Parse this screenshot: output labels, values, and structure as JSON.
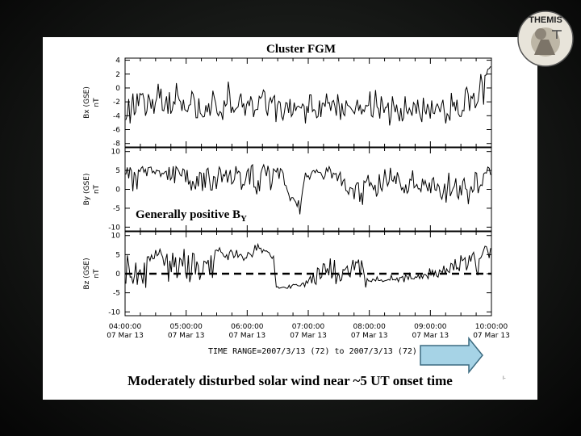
{
  "title": "Cluster FGM",
  "annotation": {
    "main": "Generally positive B",
    "sub": "Y"
  },
  "caption": "Moderately disturbed solar wind near ~5 UT onset time",
  "time_range_label": "TIME RANGE=2007/3/13 (72) to 2007/3/13 (72)",
  "logo_text": "THEMIS",
  "corner_mark": "I-",
  "colors": {
    "background": "#000000",
    "panel": "#ffffff",
    "arrow": "#a6d3e6",
    "trace": "#000000"
  },
  "chart_data": {
    "type": "line",
    "x_ticks": [
      {
        "time": "04:00:00",
        "date": "07 Mar 13"
      },
      {
        "time": "05:00:00",
        "date": "07 Mar 13"
      },
      {
        "time": "06:00:00",
        "date": "07 Mar 13"
      },
      {
        "time": "07:00:00",
        "date": "07 Mar 13"
      },
      {
        "time": "08:00:00",
        "date": "07 Mar 13"
      },
      {
        "time": "09:00:00",
        "date": "07 Mar 13"
      },
      {
        "time": "10:00:00",
        "date": "07 Mar 13"
      }
    ],
    "xlim_hours": [
      4,
      10
    ],
    "panels": [
      {
        "ylabel": "Bx (GSE)",
        "yunit": "nT",
        "ylim": [
          -8.5,
          4.3
        ],
        "ticks": [
          4,
          2,
          0,
          -2,
          -4,
          -6,
          -8
        ],
        "values": [
          -4.6,
          -3.9,
          -1.6,
          -5.1,
          -2.7,
          -0.8,
          -3.9,
          -3.4,
          -0.8,
          -2.6,
          -0.8,
          -1.0,
          -0.8,
          -1.7,
          -4.0,
          -3.3,
          -0.9,
          -1.6,
          -3.0,
          -1.6,
          -3.7,
          -2.2,
          -1.5,
          0.6,
          -1.5,
          -0.1,
          -3.2,
          -3.3,
          -2.3,
          -1.2,
          -3.7,
          -0.6,
          -3.7,
          -3.2,
          -2.0,
          -2.3,
          0.7,
          -1.0,
          -1.7,
          -2.0,
          -3.3,
          -1.7,
          -3.1,
          -3.3,
          -3.4,
          -2.5,
          -2.4,
          -0.5,
          -0.9,
          -1.9,
          -4.3,
          -4.3,
          -1.5,
          -3.6,
          -3.9,
          -4.2,
          -4.1,
          -2.5,
          -3.5,
          -2.2,
          -4.0,
          -2.8,
          -0.4,
          -1.3,
          -2.2,
          -3.6,
          -4.0,
          -3.4,
          -3.6,
          -4.6,
          -1.8,
          -2.6,
          -2.3,
          0.9,
          -0.7,
          -3.6,
          -2.7,
          -3.5,
          -3.1,
          -2.9,
          -2.7,
          -1.4,
          -0.8,
          -2.8,
          -2.2,
          -4.0,
          -2.4,
          -1.9,
          -2.6,
          -1.2,
          -1.9,
          -4.2,
          -3.2,
          -3.1,
          -3.1,
          -1.2,
          -1.5,
          -1.2,
          -0.3,
          -0.6,
          -3.2,
          -4.0,
          -2.1,
          -1.4,
          -2.1,
          -1.4,
          -1.1,
          -4.9,
          -2.5,
          -1.9,
          -2.1,
          -4.1,
          -4.6,
          -3.5,
          -2.1,
          -2.2,
          -3.6,
          -1.6,
          -4.1,
          -3.7,
          -2.1,
          -3.3,
          -2.7,
          -2.6,
          -2.8,
          -2.9,
          -2.3,
          -2.6,
          -5.1,
          -2.6,
          -3.6,
          -1.0,
          -1.0,
          -3.4,
          -3.1,
          -3.3,
          -4.3,
          -4.1,
          -1.8,
          -4.2,
          -2.2,
          -2.2,
          -2.7,
          -0.8,
          -2.2,
          -2.1,
          -3.3,
          -2.0,
          -1.8,
          -2.6,
          -4.0,
          -0.9,
          -2.4,
          -4.6,
          -2.2,
          -3.7,
          -4.0,
          -1.8,
          -2.5,
          -2.6,
          -2.8,
          -3.1,
          -3.4,
          -3.7,
          -2.6,
          -1.7,
          -3.3,
          -2.4,
          -3.8,
          -3.1,
          -3.4,
          -2.5,
          -2.6,
          -2.5,
          -0.5,
          -4.0,
          -4.2,
          -2.5,
          -0.3,
          -2.7,
          -3.0,
          -4.4,
          -1.2,
          -2.2,
          -3.6,
          -2.8,
          -2.8,
          -2.1,
          -5.4,
          -4.1,
          -1.2,
          -2.5,
          -3.5,
          -2.4,
          -3.8,
          -4.8,
          -2.9,
          -4.8,
          -4.3,
          -1.2,
          -3.3,
          -3.7,
          -2.9,
          -3.4,
          -4.0,
          -2.1,
          -2.4,
          -3.7,
          -1.7,
          -3.3,
          -4.2,
          -4.9,
          -1.4,
          -3.2,
          -3.8,
          -2.3,
          -3.0,
          -4.4,
          -1.8,
          -3.6,
          -3.7,
          -2.7,
          -2.3,
          -2.8,
          -3.5,
          -2.4,
          -1.7,
          -3.4,
          -5.1,
          -3.7,
          -4.0,
          -4.7,
          -0.7,
          -2.7,
          -2.0,
          -3.3,
          -1.7,
          -3.7,
          -4.1,
          -4.1,
          -3.2,
          -3.3,
          -0.3,
          0.1,
          -0.9,
          -3.3,
          -1.2,
          -1.5,
          -0.7,
          -2.9,
          -2.4,
          -1.9,
          -0.3,
          2.0,
          0.7,
          -2.4,
          1.8,
          1.9,
          2.7,
          2.8,
          3.1
        ]
      },
      {
        "ylabel": "By (GSE)",
        "yunit": "nT",
        "ylim": [
          -11,
          11
        ],
        "ticks": [
          10,
          5,
          0,
          -5,
          -10
        ],
        "values": [
          3.9,
          5.8,
          2.9,
          5.8,
          4.9,
          -0.5,
          4.6,
          3.5,
          0.0,
          5.1,
          4.7,
          5.6,
          6.0,
          4.5,
          5.3,
          3.5,
          5.7,
          5.8,
          5.9,
          4.4,
          4.8,
          4.1,
          5.1,
          4.9,
          4.9,
          3.4,
          4.3,
          4.1,
          4.6,
          4.8,
          2.5,
          5.9,
          2.5,
          3.1,
          6.1,
          1.6,
          6.0,
          5.5,
          4.8,
          3.8,
          3.5,
          5.4,
          5.1,
          1.9,
          5.1,
          1.3,
          2.2,
          -0.3,
          2.2,
          1.1,
          0.0,
          3.5,
          0.8,
          4.5,
          4.3,
          -0.4,
          4.4,
          0.4,
          5.2,
          5.6,
          2.7,
          -0.2,
          -0.2,
          3.4,
          3.2,
          0.1,
          3.1,
          5.9,
          5.2,
          1.9,
          3.9,
          3.5,
          5.1,
          1.8,
          3.6,
          5.1,
          1.4,
          1.8,
          2.7,
          6.1,
          4.2,
          4.8,
          4.4,
          -0.1,
          1.3,
          1.1,
          2.5,
          4.7,
          5.4,
          1.3,
          6.1,
          6.5,
          0.6,
          0.6,
          -1.3,
          2.4,
          -0.5,
          4.3,
          5.6,
          6.5,
          5.1,
          3.5,
          6.2,
          4.6,
          -0.2,
          1.6,
          5.4,
          5.0,
          4.6,
          5.7,
          2.8,
          5.5,
          5.1,
          4.3,
          1.2,
          1.0,
          -0.3,
          -1.3,
          -3.0,
          -2.2,
          -2.2,
          -2.8,
          -3.4,
          -4.5,
          -2.9,
          -6.6,
          -2.8,
          -0.1,
          2.1,
          4.4,
          3.3,
          3.6,
          2.7,
          4.0,
          4.8,
          5.0,
          4.4,
          5.2,
          4.5,
          4.5,
          4.4,
          3.5,
          2.7,
          3.5,
          5.6,
          4.7,
          6.0,
          5.1,
          2.9,
          4.3,
          4.0,
          4.2,
          2.2,
          3.7,
          4.5,
          0.9,
          2.2,
          2.7,
          -0.3,
          -0.5,
          -1.3,
          0.5,
          0.3,
          0.1,
          -2.6,
          1.0,
          1.7,
          1.7,
          -3.3,
          -0.9,
          -4.1,
          2.2,
          1.8,
          2.4,
          3.8,
          0.8,
          1.8,
          0.9,
          -0.1,
          1.2,
          -1.9,
          -0.9,
          4.0,
          0.5,
          -0.4,
          2.0,
          5.3,
          2.6,
          0.9,
          2.0,
          5.7,
          2.5,
          2.1,
          3.6,
          1.4,
          4.5,
          3.2,
          1.6,
          -0.1,
          0.5,
          -1.0,
          1.3,
          -1.0,
          -0.4,
          2.7,
          2.4,
          5.0,
          0.4,
          0.8,
          1.3,
          0.1,
          0.2,
          -0.6,
          2.8,
          1.2,
          2.3,
          0.8,
          -0.5,
          1.8,
          -1.0,
          2.6,
          3.1,
          -0.1,
          -0.3,
          1.4,
          0.7,
          -1.8,
          -2.6,
          -0.9,
          1.5,
          -3.5,
          0.4,
          4.4,
          -1.8,
          -0.8,
          0.2,
          0.9,
          2.9,
          -1.7,
          -2.5,
          1.1,
          -1.6,
          2.1,
          2.9,
          0.2,
          -0.1,
          -3.9,
          -0.7,
          0.8,
          -0.7,
          -0.1,
          4.5,
          4.3,
          -1.0,
          0.6,
          1.2,
          1.0,
          4.1,
          4.4,
          4.3,
          5.9,
          5.6,
          3.8
        ]
      },
      {
        "ylabel": "Bz (GSE)",
        "yunit": "nT",
        "ylim": [
          -11,
          11
        ],
        "ticks": [
          10,
          5,
          0,
          -5,
          -10
        ],
        "reference_line": 0,
        "values": [
          -2.6,
          4.8,
          2.4,
          -0.9,
          -0.8,
          -2.6,
          -0.6,
          2.9,
          -2.9,
          0.3,
          1.0,
          -0.6,
          -2.6,
          2.9,
          -3.7,
          4.4,
          4.5,
          3.4,
          4.9,
          3.9,
          4.0,
          6.2,
          4.7,
          5.1,
          6.4,
          5.2,
          4.3,
          2.1,
          3.6,
          5.2,
          -2.1,
          3.4,
          0.4,
          5.5,
          1.7,
          4.3,
          -1.1,
          0.3,
          4.1,
          3.6,
          1.9,
          6.5,
          0.2,
          -1.3,
          4.8,
          -2.2,
          -0.3,
          5.4,
          5.2,
          -0.2,
          3.2,
          2.1,
          -1.6,
          -0.1,
          -0.1,
          3.3,
          3.1,
          2.6,
          3.6,
          -0.3,
          4.8,
          -1.1,
          3.3,
          6.1,
          6.2,
          5.9,
          6.8,
          5.7,
          5.4,
          4.6,
          4.3,
          5.0,
          3.6,
          5.6,
          6.2,
          5.6,
          4.2,
          4.7,
          6.2,
          4.3,
          4.9,
          5.1,
          4.5,
          3.5,
          4.1,
          4.1,
          5.6,
          5.3,
          5.0,
          4.4,
          5.6,
          7.5,
          6.1,
          7.7,
          6.6,
          6.7,
          5.5,
          6.3,
          5.9,
          6.0,
          5.7,
          5.5,
          4.6,
          4.0,
          4.6,
          0.1,
          -3.5,
          -3.4,
          -3.8,
          -3.7,
          -3.6,
          -3.5,
          -3.6,
          -3.8,
          -3.8,
          -3.0,
          -3.8,
          -3.1,
          -2.8,
          -2.9,
          -2.8,
          -3.1,
          -3.2,
          -3.2,
          -2.6,
          -2.4,
          -3.4,
          -1.9,
          -2.5,
          -1.5,
          -0.7,
          -2.5,
          0.1,
          -2.3,
          -2.8,
          1.5,
          1.2,
          -1.3,
          -0.8,
          2.6,
          2.5,
          0.2,
          1.4,
          -0.4,
          4.0,
          -1.2,
          -0.2,
          3.6,
          -2.7,
          -0.7,
          0.1,
          -1.9,
          -1.6,
          1.1,
          0.9,
          1.4,
          2.0,
          -0.3,
          -0.8,
          1.7,
          3.6,
          0.9,
          3.1,
          2.8,
          3.7,
          -0.9,
          3.5,
          1.7,
          -0.5,
          -3.6,
          -1.3,
          -1.9,
          -1.9,
          -2.1,
          -1.4,
          -1.6,
          -1.9,
          -0.8,
          -1.8,
          -1.8,
          -1.6,
          -2.1,
          -1.9,
          -1.8,
          -1.7,
          -1.5,
          -1.7,
          -0.4,
          -1.6,
          -1.5,
          -1.7,
          -1.1,
          -2.1,
          -1.0,
          -1.0,
          -0.7,
          -2.2,
          -0.4,
          -0.7,
          -1.5,
          0.0,
          -1.3,
          -1.3,
          -1.4,
          -0.8,
          -1.0,
          -0.3,
          -1.3,
          -0.3,
          -1.2,
          -0.2,
          -0.2,
          -0.6,
          -1.3,
          1.4,
          -0.3,
          0.9,
          -0.6,
          0.7,
          -0.6,
          -0.9,
          1.0,
          0.6,
          0.3,
          2.1,
          -0.2,
          1.3,
          0.6,
          0.3,
          2.7,
          2.5,
          0.9,
          3.8,
          1.2,
          1.6,
          0.7,
          4.8,
          3.4,
          3.7,
          4.2,
          0.9,
          2.2,
          4.8,
          3.2,
          4.9,
          5.6,
          3.6,
          0.8,
          -0.4,
          3.9,
          4.1,
          4.9,
          6.1,
          7.2,
          7.1,
          5.9,
          4.1,
          6.7
        ]
      }
    ]
  }
}
